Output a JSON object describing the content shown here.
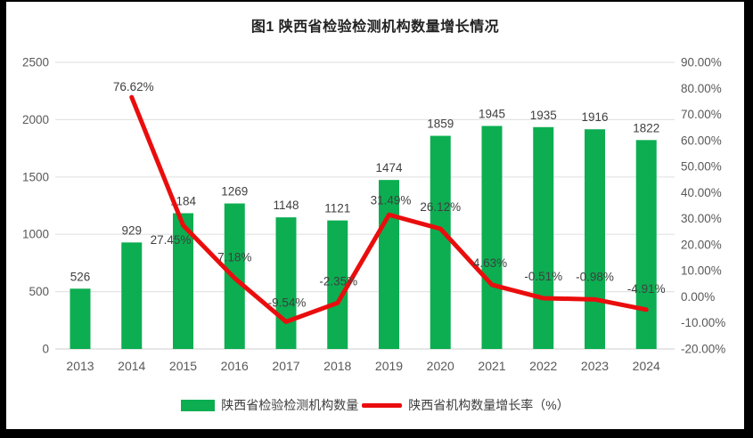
{
  "title": "图1 陕西省检验检测机构数量增长情况",
  "legend": {
    "bars": "陕西省检验检测机构数量",
    "line": "陕西省机构数量增长率（%）"
  },
  "colors": {
    "bar": "#0cae51",
    "line": "#ea0d0d",
    "grid": "#e3e3e3",
    "axis_line": "#d6d6d6",
    "axis_text": "#595959",
    "label_text": "#3f3f3f",
    "frame": "#000000",
    "background": "#ffffff"
  },
  "chart_data": {
    "type": "bar",
    "subtype": "bar+line combo, dual axis",
    "title": "图1 陕西省检验检测机构数量增长情况",
    "categories": [
      "2013",
      "2014",
      "2015",
      "2016",
      "2017",
      "2018",
      "2019",
      "2020",
      "2021",
      "2022",
      "2023",
      "2024"
    ],
    "series": [
      {
        "name": "陕西省检验检测机构数量",
        "type": "bar",
        "axis": "left",
        "values": [
          526,
          929,
          1184,
          1269,
          1148,
          1121,
          1474,
          1859,
          1945,
          1935,
          1916,
          1822
        ],
        "labels": [
          "526",
          "929",
          "1184",
          "1269",
          "1148",
          "1121",
          "1474",
          "1859",
          "1945",
          "1935",
          "1916",
          "1822"
        ]
      },
      {
        "name": "陕西省机构数量增长率（%）",
        "type": "line",
        "axis": "right",
        "values": [
          null,
          76.62,
          27.45,
          7.18,
          -9.54,
          -2.35,
          31.49,
          26.12,
          4.63,
          -0.51,
          -0.98,
          -4.91
        ],
        "labels": [
          null,
          "76.62%",
          "27.45%",
          "7.18%",
          "-9.54%",
          "-2.35%",
          "31.49%",
          "26.12%",
          "4.63%",
          "-0.51%",
          "-0.98%",
          "-4.91%"
        ]
      }
    ],
    "left_axis": {
      "min": 0,
      "max": 2500,
      "step": 500,
      "ticks": [
        "0",
        "500",
        "1000",
        "1500",
        "2000",
        "2500"
      ]
    },
    "right_axis": {
      "min": -20,
      "max": 90,
      "step": 10,
      "ticks": [
        "-20.00%",
        "-10.00%",
        "0.00%",
        "10.00%",
        "20.00%",
        "30.00%",
        "40.00%",
        "50.00%",
        "60.00%",
        "70.00%",
        "80.00%",
        "90.00%"
      ]
    },
    "grid": true,
    "legend_position": "bottom"
  }
}
